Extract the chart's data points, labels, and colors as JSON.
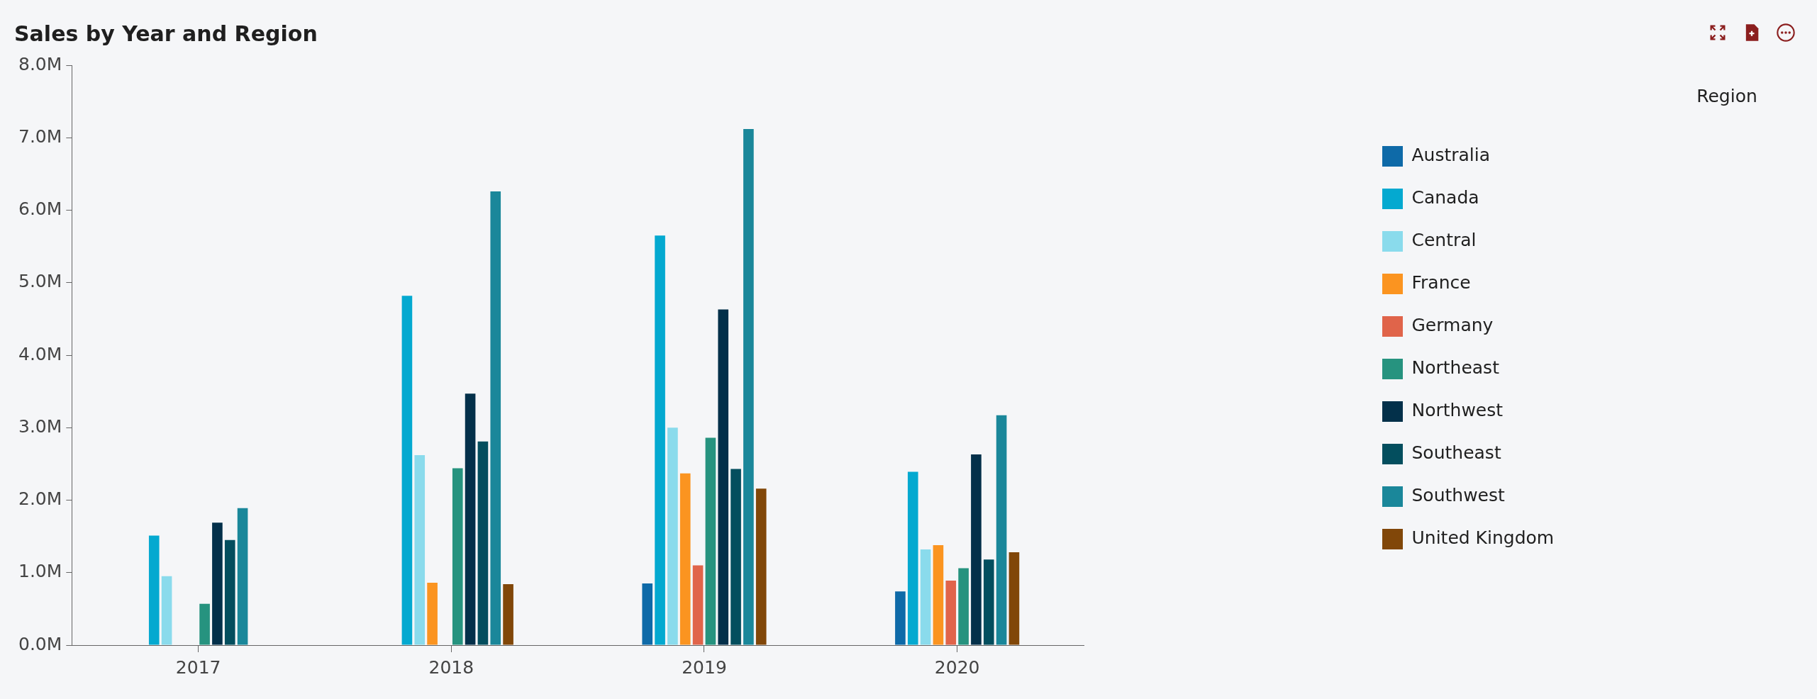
{
  "chart_data": {
    "type": "bar",
    "title": "Sales by Year and Region",
    "categories": [
      "2017",
      "2018",
      "2019",
      "2020"
    ],
    "series": [
      {
        "name": "Australia",
        "color": "#0e6aa8",
        "values": [
          null,
          null,
          0.85,
          0.74
        ]
      },
      {
        "name": "Canada",
        "color": "#04a9d0",
        "values": [
          1.51,
          4.82,
          5.65,
          2.39
        ]
      },
      {
        "name": "Central",
        "color": "#8adbec",
        "values": [
          0.95,
          2.62,
          3.0,
          1.32
        ]
      },
      {
        "name": "France",
        "color": "#fb9420",
        "values": [
          null,
          0.86,
          2.37,
          1.38
        ]
      },
      {
        "name": "Germany",
        "color": "#e0644a",
        "values": [
          null,
          null,
          1.1,
          0.89
        ]
      },
      {
        "name": "Northeast",
        "color": "#26937f",
        "values": [
          0.57,
          2.44,
          2.86,
          1.06
        ]
      },
      {
        "name": "Northwest",
        "color": "#03304a",
        "values": [
          1.69,
          3.47,
          4.63,
          2.63
        ]
      },
      {
        "name": "Southeast",
        "color": "#034e5e",
        "values": [
          1.45,
          2.81,
          2.43,
          1.18
        ]
      },
      {
        "name": "Southwest",
        "color": "#1a879a",
        "values": [
          1.89,
          6.26,
          7.12,
          3.17
        ]
      },
      {
        "name": "United Kingdom",
        "color": "#814709",
        "values": [
          null,
          0.84,
          2.16,
          1.28
        ]
      }
    ],
    "ylim": [
      0,
      8
    ],
    "yticks": [
      {
        "value": 0,
        "label": "0.0M"
      },
      {
        "value": 1,
        "label": "1.0M"
      },
      {
        "value": 2,
        "label": "2.0M"
      },
      {
        "value": 3,
        "label": "3.0M"
      },
      {
        "value": 4,
        "label": "4.0M"
      },
      {
        "value": 5,
        "label": "5.0M"
      },
      {
        "value": 6,
        "label": "6.0M"
      },
      {
        "value": 7,
        "label": "7.0M"
      },
      {
        "value": 8,
        "label": "8.0M"
      }
    ],
    "grid": false,
    "legend": "right",
    "legend_title": "Region"
  }
}
